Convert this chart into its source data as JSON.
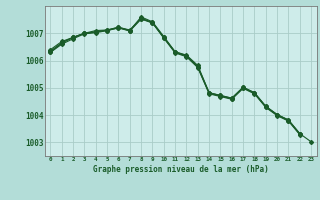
{
  "background_color": "#b3ddd8",
  "plot_bg_color": "#ceecea",
  "grid_color": "#aaccc8",
  "line_color": "#1a5c2a",
  "title": "Graphe pression niveau de la mer (hPa)",
  "xlim": [
    -0.5,
    23.5
  ],
  "ylim": [
    1002.5,
    1008.0
  ],
  "yticks": [
    1003,
    1004,
    1005,
    1006,
    1007
  ],
  "xticks": [
    0,
    1,
    2,
    3,
    4,
    5,
    6,
    7,
    8,
    9,
    10,
    11,
    12,
    13,
    14,
    15,
    16,
    17,
    18,
    19,
    20,
    21,
    22,
    23
  ],
  "s1_x": [
    0,
    1,
    2,
    3,
    4,
    5,
    6,
    7,
    8,
    9,
    10,
    11,
    12,
    13,
    14,
    15,
    16,
    17,
    18,
    19,
    20,
    21,
    22
  ],
  "s1_y": [
    1006.35,
    1006.65,
    1006.85,
    1007.0,
    1007.05,
    1007.12,
    1007.22,
    1007.12,
    1007.55,
    1007.4,
    1006.85,
    1006.32,
    1006.18,
    1005.78,
    1004.82,
    1004.72,
    1004.62,
    1005.02,
    1004.82,
    1004.32,
    1004.02,
    1003.82,
    1003.32
  ],
  "s2_x": [
    0,
    1,
    2,
    3,
    4,
    5,
    6,
    7,
    8,
    9,
    10,
    11,
    12,
    13,
    14,
    15,
    16,
    17,
    18,
    19,
    20,
    21,
    22
  ],
  "s2_y": [
    1006.3,
    1006.6,
    1006.8,
    1006.98,
    1007.02,
    1007.1,
    1007.2,
    1007.08,
    1007.52,
    1007.38,
    1006.82,
    1006.28,
    1006.14,
    1005.74,
    1004.78,
    1004.68,
    1004.58,
    1004.98,
    1004.78,
    1004.28,
    1003.98,
    1003.78,
    1003.28
  ],
  "s3_x": [
    0,
    1,
    2,
    3,
    4,
    5,
    6,
    7,
    8,
    9,
    10,
    11,
    12,
    13,
    14,
    15,
    16,
    17,
    18,
    19,
    20,
    21,
    22
  ],
  "s3_y": [
    1006.4,
    1006.7,
    1006.85,
    1007.0,
    1007.05,
    1007.1,
    1007.2,
    1007.1,
    1007.54,
    1007.38,
    1006.84,
    1006.3,
    1006.16,
    1005.76,
    1004.8,
    1004.7,
    1004.6,
    1005.0,
    1004.8,
    1004.3,
    1004.0,
    1003.8,
    1003.3
  ],
  "s4_x": [
    0,
    1,
    2,
    3,
    4,
    5,
    6,
    7,
    8,
    9,
    10,
    11,
    12,
    13,
    14,
    15,
    16,
    17,
    18,
    19,
    20,
    21,
    22,
    23
  ],
  "s4_y": [
    1006.3,
    1006.65,
    1006.85,
    1007.0,
    1007.1,
    1007.12,
    1007.22,
    1007.1,
    1007.6,
    1007.42,
    1006.88,
    1006.32,
    1006.2,
    1005.82,
    1004.82,
    1004.72,
    1004.62,
    1005.02,
    1004.82,
    1004.32,
    1004.02,
    1003.82,
    1003.32,
    1003.02
  ]
}
